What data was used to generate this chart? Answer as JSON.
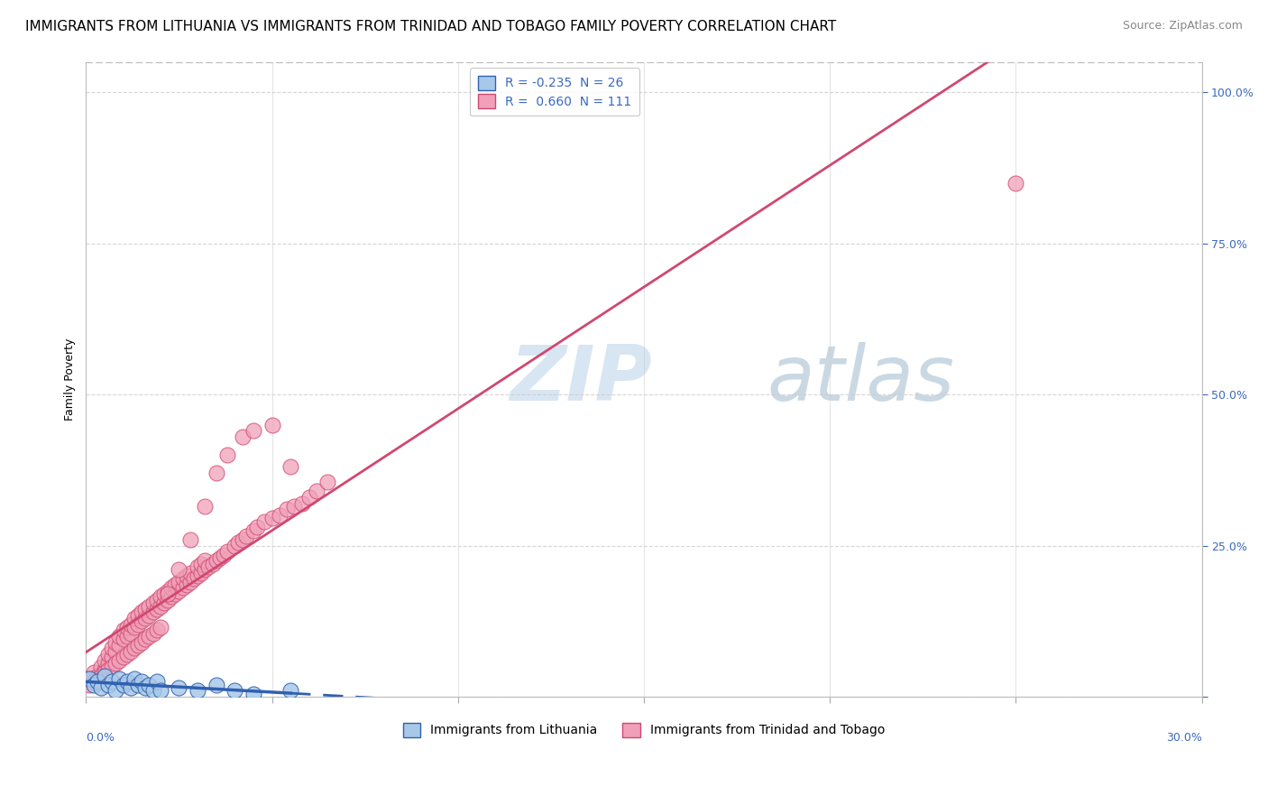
{
  "title": "IMMIGRANTS FROM LITHUANIA VS IMMIGRANTS FROM TRINIDAD AND TOBAGO FAMILY POVERTY CORRELATION CHART",
  "source": "Source: ZipAtlas.com",
  "ylabel": "Family Poverty",
  "yticks": [
    0.0,
    0.25,
    0.5,
    0.75,
    1.0
  ],
  "ytick_labels": [
    "",
    "25.0%",
    "50.0%",
    "75.0%",
    "100.0%"
  ],
  "xlim": [
    0.0,
    0.3
  ],
  "ylim": [
    0.0,
    1.05
  ],
  "legend1_label": "R = -0.235  N = 26",
  "legend2_label": "R =  0.660  N = 111",
  "color_lithuania": "#a8c8e8",
  "color_tt": "#f0a0b8",
  "regression_color_lithuania": "#3060b0",
  "regression_color_tt": "#d04870",
  "watermark_zip": "ZIP",
  "watermark_atlas": "atlas",
  "watermark_color_zip": "#c8ddf0",
  "watermark_color_atlas": "#b8c8d8",
  "title_fontsize": 11,
  "source_fontsize": 9,
  "axis_label_fontsize": 9,
  "tick_fontsize": 9,
  "legend_fontsize": 10,
  "R_lithuania": -0.235,
  "N_lithuania": 26,
  "R_tt": 0.66,
  "N_tt": 111,
  "lith_x": [
    0.001,
    0.002,
    0.003,
    0.004,
    0.005,
    0.006,
    0.007,
    0.008,
    0.009,
    0.01,
    0.011,
    0.012,
    0.013,
    0.014,
    0.015,
    0.016,
    0.017,
    0.018,
    0.019,
    0.02,
    0.025,
    0.03,
    0.035,
    0.04,
    0.045,
    0.055
  ],
  "lith_y": [
    0.03,
    0.02,
    0.025,
    0.015,
    0.035,
    0.02,
    0.025,
    0.01,
    0.03,
    0.02,
    0.025,
    0.015,
    0.03,
    0.02,
    0.025,
    0.015,
    0.02,
    0.01,
    0.025,
    0.01,
    0.015,
    0.01,
    0.02,
    0.01,
    0.005,
    0.01
  ],
  "tt_x": [
    0.001,
    0.002,
    0.003,
    0.004,
    0.005,
    0.005,
    0.006,
    0.006,
    0.007,
    0.007,
    0.008,
    0.008,
    0.009,
    0.009,
    0.01,
    0.01,
    0.011,
    0.011,
    0.012,
    0.012,
    0.013,
    0.013,
    0.014,
    0.014,
    0.015,
    0.015,
    0.016,
    0.016,
    0.017,
    0.017,
    0.018,
    0.018,
    0.019,
    0.019,
    0.02,
    0.02,
    0.021,
    0.021,
    0.022,
    0.022,
    0.023,
    0.023,
    0.024,
    0.024,
    0.025,
    0.025,
    0.026,
    0.026,
    0.027,
    0.027,
    0.028,
    0.028,
    0.029,
    0.03,
    0.03,
    0.031,
    0.031,
    0.032,
    0.032,
    0.033,
    0.034,
    0.035,
    0.036,
    0.037,
    0.038,
    0.04,
    0.041,
    0.042,
    0.043,
    0.045,
    0.046,
    0.048,
    0.05,
    0.052,
    0.054,
    0.056,
    0.058,
    0.06,
    0.062,
    0.065,
    0.001,
    0.002,
    0.003,
    0.004,
    0.005,
    0.006,
    0.007,
    0.008,
    0.009,
    0.01,
    0.011,
    0.012,
    0.013,
    0.014,
    0.015,
    0.016,
    0.017,
    0.018,
    0.019,
    0.02,
    0.022,
    0.025,
    0.028,
    0.032,
    0.035,
    0.038,
    0.042,
    0.045,
    0.05,
    0.055,
    0.25
  ],
  "tt_y": [
    0.03,
    0.04,
    0.035,
    0.05,
    0.045,
    0.06,
    0.055,
    0.07,
    0.065,
    0.08,
    0.075,
    0.09,
    0.085,
    0.1,
    0.095,
    0.11,
    0.1,
    0.115,
    0.105,
    0.12,
    0.115,
    0.13,
    0.12,
    0.135,
    0.125,
    0.14,
    0.13,
    0.145,
    0.135,
    0.15,
    0.14,
    0.155,
    0.145,
    0.16,
    0.15,
    0.165,
    0.155,
    0.17,
    0.16,
    0.175,
    0.165,
    0.18,
    0.17,
    0.185,
    0.175,
    0.19,
    0.18,
    0.195,
    0.185,
    0.2,
    0.19,
    0.205,
    0.195,
    0.2,
    0.215,
    0.205,
    0.22,
    0.21,
    0.225,
    0.215,
    0.22,
    0.225,
    0.23,
    0.235,
    0.24,
    0.25,
    0.255,
    0.26,
    0.265,
    0.275,
    0.28,
    0.29,
    0.295,
    0.3,
    0.31,
    0.315,
    0.32,
    0.33,
    0.34,
    0.355,
    0.02,
    0.025,
    0.03,
    0.035,
    0.04,
    0.045,
    0.05,
    0.055,
    0.06,
    0.065,
    0.07,
    0.075,
    0.08,
    0.085,
    0.09,
    0.095,
    0.1,
    0.105,
    0.11,
    0.115,
    0.17,
    0.21,
    0.26,
    0.315,
    0.37,
    0.4,
    0.43,
    0.44,
    0.45,
    0.38,
    0.85
  ]
}
